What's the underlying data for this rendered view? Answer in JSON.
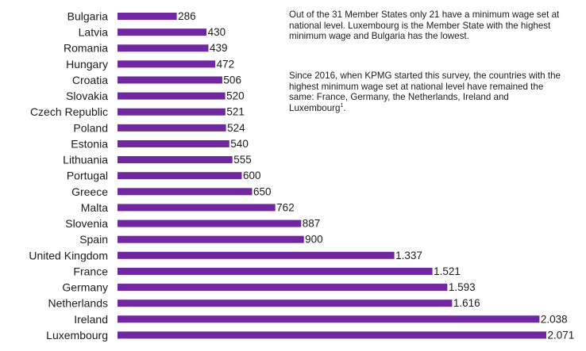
{
  "chart_data": {
    "type": "bar",
    "orientation": "horizontal",
    "categories": [
      "Bulgaria",
      "Latvia",
      "Romania",
      "Hungary",
      "Croatia",
      "Slovakia",
      "Czech Republic",
      "Poland",
      "Estonia",
      "Lithuania",
      "Portugal",
      "Greece",
      "Malta",
      "Slovenia",
      "Spain",
      "United Kingdom",
      "France",
      "Germany",
      "Netherlands",
      "Ireland",
      "Luxembourg"
    ],
    "values": [
      286,
      430,
      439,
      472,
      506,
      520,
      521,
      524,
      540,
      555,
      600,
      650,
      762,
      887,
      900,
      1337,
      1521,
      1593,
      1616,
      2038,
      2071
    ],
    "value_labels": [
      "286",
      "430",
      "439",
      "472",
      "506",
      "520",
      "521",
      "524",
      "540",
      "555",
      "600",
      "650",
      "762",
      "887",
      "900",
      "1.337",
      "1.521",
      "1.593",
      "1.616",
      "2.038",
      "2.071"
    ],
    "bar_color": "#7028a0",
    "xlim": [
      0,
      2071
    ],
    "grid": false,
    "legend": "none"
  },
  "notes": {
    "paragraph1": "Out of the 31 Member States only 21 have a minimum wage set at national level. Luxembourg is the Member State with the highest minimum wage and Bulgaria has the lowest.",
    "paragraph2": "Since 2016, when KPMG started this survey, the countries with the highest minimum wage set at national level have remained the same: France, Germany, the Netherlands, Ireland and Luxembourg",
    "paragraph2_superscript": "1",
    "paragraph2_end": "."
  }
}
